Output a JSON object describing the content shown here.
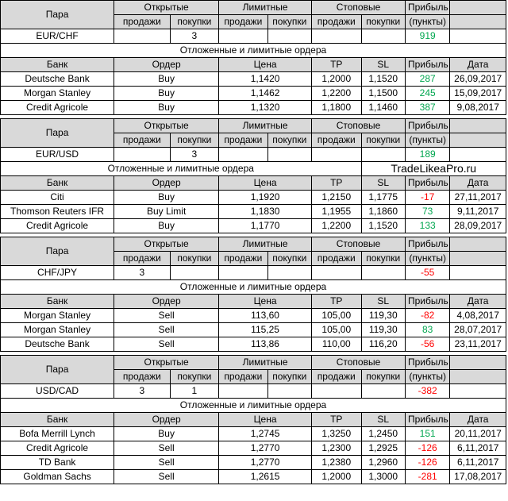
{
  "colors": {
    "positive": "#00a64f",
    "negative": "#ff0000",
    "header_bg": "#d9d9d9"
  },
  "watermark": "TradeLikeaPro.ru",
  "labels": {
    "pair": "Пара",
    "open": "Открытые",
    "limit": "Лимитные",
    "stop": "Стоповые",
    "profit": "Прибыль",
    "points": "(пункты)",
    "sell": "продажи",
    "buy": "покупки",
    "orders_title": "Отложенные и лимитные ордера",
    "bank": "Банк",
    "order": "Ордер",
    "price": "Цена",
    "tp": "TP",
    "sl": "SL",
    "date": "Дата"
  },
  "blocks": [
    {
      "pair": "EUR/CHF",
      "open_sell": "",
      "open_buy": "3",
      "profit": "919",
      "profit_color": "pos",
      "orders": [
        {
          "bank": "Deutsche Bank",
          "order": "Buy",
          "price": "1,1420",
          "tp": "1,2000",
          "sl": "1,1520",
          "profit": "287",
          "color": "pos",
          "date": "26,09,2017"
        },
        {
          "bank": "Morgan Stanley",
          "order": "Buy",
          "price": "1,1462",
          "tp": "1,2200",
          "sl": "1,1500",
          "profit": "245",
          "color": "pos",
          "date": "15,09,2017"
        },
        {
          "bank": "Credit Agricole",
          "order": "Buy",
          "price": "1,1320",
          "tp": "1,1800",
          "sl": "1,1460",
          "profit": "387",
          "color": "pos",
          "date": "9,08,2017"
        }
      ]
    },
    {
      "pair": "EUR/USD",
      "open_sell": "",
      "open_buy": "3",
      "profit": "189",
      "profit_color": "pos",
      "orders": [
        {
          "bank": "Citi",
          "order": "Buy",
          "price": "1,1920",
          "tp": "1,2150",
          "sl": "1,1775",
          "profit": "-17",
          "color": "neg",
          "date": "27,11,2017"
        },
        {
          "bank": "Thomson Reuters IFR",
          "order": "Buy Limit",
          "price": "1,1830",
          "tp": "1,1955",
          "sl": "1,1860",
          "profit": "73",
          "color": "pos",
          "date": "9,11,2017"
        },
        {
          "bank": "Credit Agricole",
          "order": "Buy",
          "price": "1,1770",
          "tp": "1,2200",
          "sl": "1,1520",
          "profit": "133",
          "color": "pos",
          "date": "28,09,2017"
        }
      ]
    },
    {
      "pair": "CHF/JPY",
      "open_sell": "3",
      "open_buy": "",
      "profit": "-55",
      "profit_color": "neg",
      "orders": [
        {
          "bank": "Morgan Stanley",
          "order": "Sell",
          "price": "113,60",
          "tp": "105,00",
          "sl": "119,30",
          "profit": "-82",
          "color": "neg",
          "date": "4,08,2017"
        },
        {
          "bank": "Morgan Stanley",
          "order": "Sell",
          "price": "115,25",
          "tp": "105,00",
          "sl": "119,30",
          "profit": "83",
          "color": "pos",
          "date": "28,07,2017"
        },
        {
          "bank": "Deutsche Bank",
          "order": "Sell",
          "price": "113,86",
          "tp": "110,00",
          "sl": "116,20",
          "profit": "-56",
          "color": "neg",
          "date": "23,11,2017"
        }
      ]
    },
    {
      "pair": "USD/CAD",
      "open_sell": "3",
      "open_buy": "1",
      "profit": "-382",
      "profit_color": "neg",
      "orders": [
        {
          "bank": "Bofa Merrill Lynch",
          "order": "Buy",
          "price": "1,2745",
          "tp": "1,3250",
          "sl": "1,2450",
          "profit": "151",
          "color": "pos",
          "date": "20,11,2017"
        },
        {
          "bank": "Credit Agricole",
          "order": "Sell",
          "price": "1,2770",
          "tp": "1,2300",
          "sl": "1,2925",
          "profit": "-126",
          "color": "neg",
          "date": "6,11,2017"
        },
        {
          "bank": "TD Bank",
          "order": "Sell",
          "price": "1,2770",
          "tp": "1,2380",
          "sl": "1,2960",
          "profit": "-126",
          "color": "neg",
          "date": "6,11,2017"
        },
        {
          "bank": "Goldman Sachs",
          "order": "Sell",
          "price": "1,2615",
          "tp": "1,2000",
          "sl": "1,3000",
          "profit": "-281",
          "color": "neg",
          "date": "17,08,2017"
        }
      ]
    }
  ]
}
